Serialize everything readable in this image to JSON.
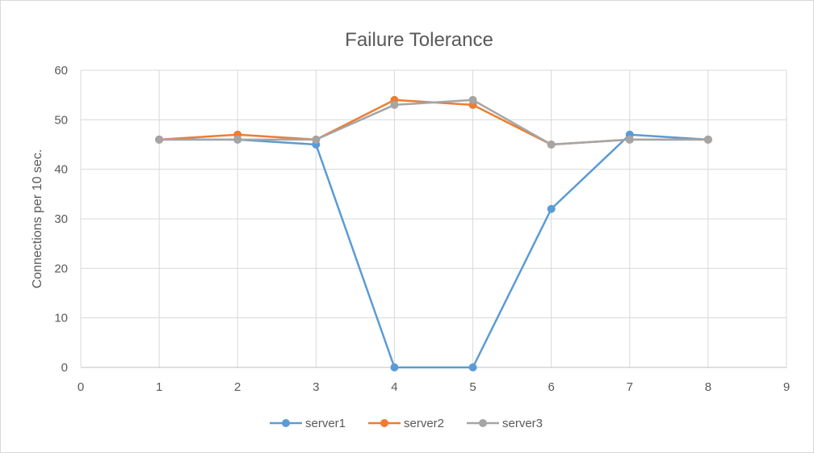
{
  "chart_data": {
    "type": "line",
    "title": "Failure Tolerance",
    "xlabel": "",
    "ylabel": "Connections per 10 sec.",
    "xlim": [
      0,
      9
    ],
    "ylim": [
      0,
      60
    ],
    "x_ticks": [
      0,
      1,
      2,
      3,
      4,
      5,
      6,
      7,
      8,
      9
    ],
    "y_ticks": [
      0,
      10,
      20,
      30,
      40,
      50,
      60
    ],
    "grid": true,
    "legend_position": "bottom",
    "x": [
      1,
      2,
      3,
      4,
      5,
      6,
      7,
      8
    ],
    "series": [
      {
        "name": "server1",
        "color": "#5b9bd5",
        "values": [
          46,
          46,
          45,
          0,
          0,
          32,
          47,
          46
        ]
      },
      {
        "name": "server2",
        "color": "#ed7d31",
        "values": [
          46,
          47,
          46,
          54,
          53,
          45,
          46,
          46
        ]
      },
      {
        "name": "server3",
        "color": "#a5a5a5",
        "values": [
          46,
          46,
          46,
          53,
          54,
          45,
          46,
          46
        ]
      }
    ]
  }
}
